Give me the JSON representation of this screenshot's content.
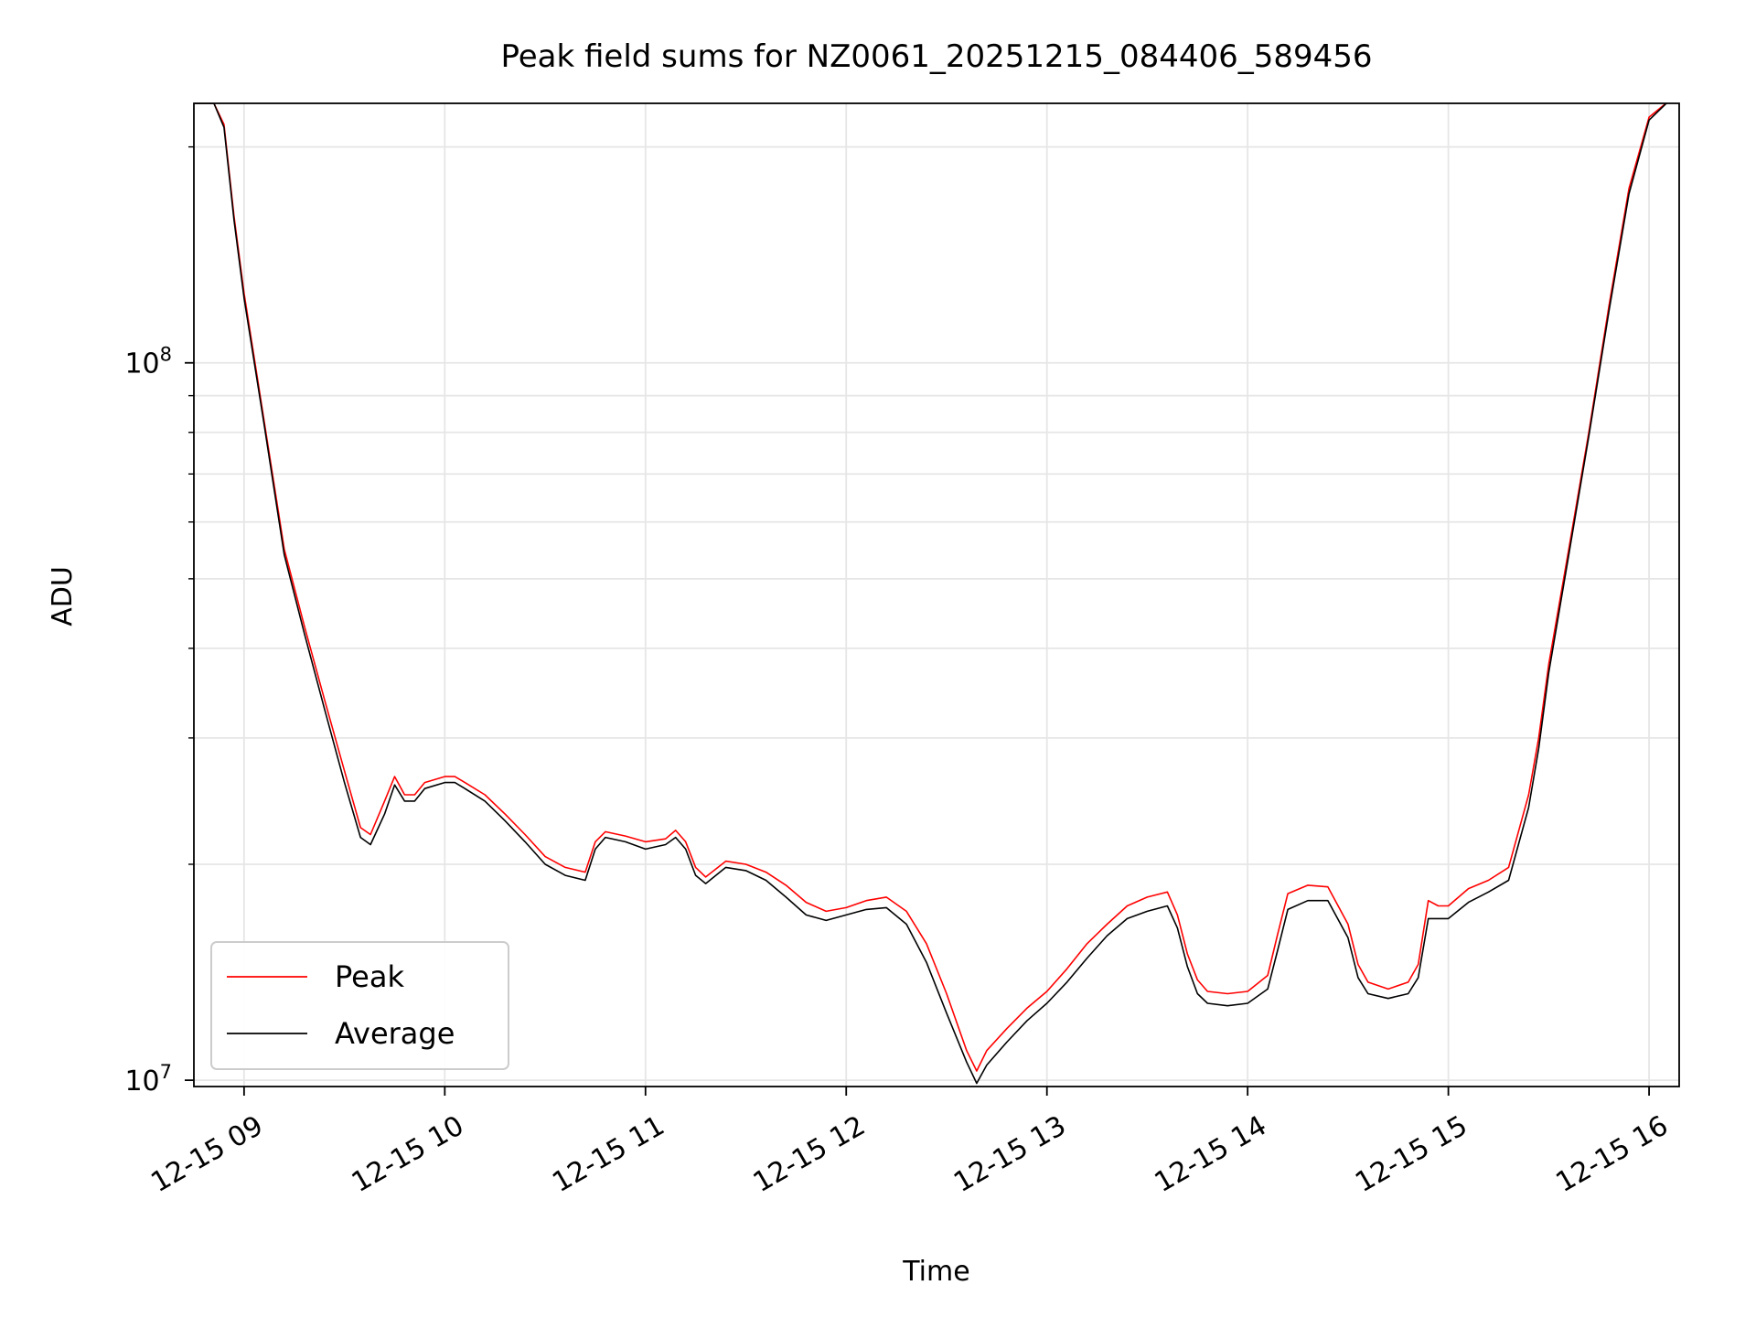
{
  "chart_data": {
    "type": "line",
    "title": "Peak field sums for NZ0061_20251215_084406_589456",
    "xlabel": "Time",
    "ylabel": "ADU",
    "yscale": "log",
    "xlim": [
      8.75,
      16.15
    ],
    "ylim": [
      9800000.0,
      230000000.0
    ],
    "grid": true,
    "legend_position": "lower-left",
    "x_ticks": [
      {
        "value": 9,
        "label": "12-15 09"
      },
      {
        "value": 10,
        "label": "12-15 10"
      },
      {
        "value": 11,
        "label": "12-15 11"
      },
      {
        "value": 12,
        "label": "12-15 12"
      },
      {
        "value": 13,
        "label": "12-15 13"
      },
      {
        "value": 14,
        "label": "12-15 14"
      },
      {
        "value": 15,
        "label": "12-15 15"
      },
      {
        "value": 16,
        "label": "12-15 16"
      }
    ],
    "y_major_ticks": [
      {
        "value": 10000000,
        "base": "10",
        "exp": "7"
      },
      {
        "value": 100000000,
        "base": "10",
        "exp": "8"
      }
    ],
    "y_minor_ticks": [
      20000000,
      30000000,
      40000000,
      50000000,
      60000000,
      70000000,
      80000000,
      90000000,
      200000000
    ],
    "series": [
      {
        "name": "Peak",
        "color": "#ff0000",
        "x": [
          8.75,
          8.85,
          8.9,
          8.95,
          9.0,
          9.1,
          9.2,
          9.3,
          9.4,
          9.5,
          9.58,
          9.63,
          9.7,
          9.75,
          9.8,
          9.85,
          9.9,
          10.0,
          10.05,
          10.1,
          10.2,
          10.3,
          10.4,
          10.5,
          10.6,
          10.7,
          10.75,
          10.8,
          10.9,
          11.0,
          11.1,
          11.15,
          11.2,
          11.25,
          11.3,
          11.4,
          11.5,
          11.6,
          11.7,
          11.8,
          11.9,
          12.0,
          12.1,
          12.2,
          12.3,
          12.4,
          12.5,
          12.6,
          12.65,
          12.7,
          12.8,
          12.9,
          13.0,
          13.1,
          13.2,
          13.3,
          13.4,
          13.5,
          13.6,
          13.65,
          13.7,
          13.75,
          13.8,
          13.9,
          14.0,
          14.1,
          14.15,
          14.2,
          14.3,
          14.4,
          14.5,
          14.55,
          14.6,
          14.7,
          14.8,
          14.85,
          14.9,
          14.95,
          15.0,
          15.1,
          15.2,
          15.3,
          15.4,
          15.45,
          15.5,
          15.6,
          15.7,
          15.8,
          15.9,
          16.0,
          16.1
        ],
        "y": [
          230000000,
          230000000,
          215000000,
          160000000,
          125000000,
          83000000,
          55000000,
          43000000,
          34000000,
          27000000,
          22500000,
          22000000,
          24500000,
          26500000,
          25000000,
          25000000,
          26000000,
          26500000,
          26500000,
          26000000,
          25000000,
          23500000,
          22000000,
          20500000,
          19800000,
          19500000,
          21500000,
          22200000,
          21900000,
          21500000,
          21700000,
          22300000,
          21500000,
          19800000,
          19200000,
          20200000,
          20000000,
          19500000,
          18700000,
          17700000,
          17200000,
          17400000,
          17800000,
          18000000,
          17200000,
          15500000,
          13200000,
          11000000,
          10300000,
          11000000,
          11800000,
          12600000,
          13300000,
          14300000,
          15500000,
          16500000,
          17500000,
          18000000,
          18300000,
          17000000,
          15000000,
          13800000,
          13300000,
          13200000,
          13300000,
          14000000,
          16000000,
          18200000,
          18700000,
          18600000,
          16500000,
          14500000,
          13700000,
          13400000,
          13700000,
          14500000,
          17800000,
          17500000,
          17500000,
          18500000,
          19000000,
          19800000,
          25000000,
          30000000,
          38000000,
          55000000,
          80000000,
          120000000,
          175000000,
          220000000,
          232000000
        ]
      },
      {
        "name": "Average",
        "color": "#000000",
        "x": [
          8.75,
          8.85,
          8.9,
          8.95,
          9.0,
          9.1,
          9.2,
          9.3,
          9.4,
          9.5,
          9.58,
          9.63,
          9.7,
          9.75,
          9.8,
          9.85,
          9.9,
          10.0,
          10.05,
          10.1,
          10.2,
          10.3,
          10.4,
          10.5,
          10.6,
          10.7,
          10.75,
          10.8,
          10.9,
          11.0,
          11.1,
          11.15,
          11.2,
          11.25,
          11.3,
          11.4,
          11.5,
          11.6,
          11.7,
          11.8,
          11.9,
          12.0,
          12.1,
          12.2,
          12.3,
          12.4,
          12.5,
          12.6,
          12.65,
          12.7,
          12.8,
          12.9,
          13.0,
          13.1,
          13.2,
          13.3,
          13.4,
          13.5,
          13.6,
          13.65,
          13.7,
          13.75,
          13.8,
          13.9,
          14.0,
          14.1,
          14.15,
          14.2,
          14.3,
          14.4,
          14.5,
          14.55,
          14.6,
          14.7,
          14.8,
          14.85,
          14.9,
          14.95,
          15.0,
          15.1,
          15.2,
          15.3,
          15.4,
          15.45,
          15.5,
          15.6,
          15.7,
          15.8,
          15.9,
          16.0,
          16.1
        ],
        "y": [
          230000000,
          230000000,
          213000000,
          158000000,
          123000000,
          82000000,
          54000000,
          42000000,
          33000000,
          26000000,
          21800000,
          21300000,
          23500000,
          25800000,
          24500000,
          24500000,
          25500000,
          26000000,
          26000000,
          25500000,
          24500000,
          23000000,
          21500000,
          20000000,
          19300000,
          19000000,
          21000000,
          21800000,
          21500000,
          21000000,
          21300000,
          21800000,
          21000000,
          19300000,
          18800000,
          19800000,
          19600000,
          19000000,
          18000000,
          17000000,
          16700000,
          17000000,
          17300000,
          17400000,
          16500000,
          14600000,
          12400000,
          10600000,
          9900000,
          10500000,
          11300000,
          12100000,
          12800000,
          13700000,
          14800000,
          15900000,
          16800000,
          17200000,
          17500000,
          16300000,
          14400000,
          13200000,
          12800000,
          12700000,
          12800000,
          13400000,
          15200000,
          17300000,
          17800000,
          17800000,
          15800000,
          13900000,
          13200000,
          13000000,
          13200000,
          13900000,
          16800000,
          16800000,
          16800000,
          17700000,
          18300000,
          19000000,
          24000000,
          29000000,
          37000000,
          54000000,
          79000000,
          118000000,
          172000000,
          218000000,
          232000000
        ]
      }
    ]
  }
}
